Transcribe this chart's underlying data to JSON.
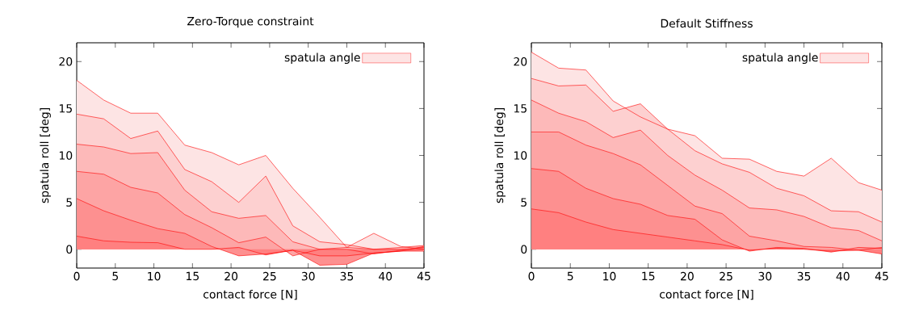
{
  "chart_data": [
    {
      "type": "area",
      "title": "Zero-Torque constraint",
      "xlabel": "contact force [N]",
      "ylabel": "spatula roll [deg]",
      "legend": "top right",
      "xlim": [
        0,
        45
      ],
      "ylim": [
        -2,
        22
      ],
      "xticks": [
        0,
        5,
        10,
        15,
        20,
        25,
        30,
        35,
        40,
        45
      ],
      "yticks": [
        0,
        5,
        10,
        15,
        20
      ],
      "x": [
        0,
        3.5,
        7,
        10.5,
        14,
        17.5,
        21,
        24.5,
        28,
        31.5,
        35,
        38.5,
        42,
        45
      ],
      "series": [
        {
          "name": "spatula angle",
          "color": "#fde4e4",
          "values": [
            18.0,
            15.9,
            14.5,
            14.5,
            11.1,
            10.3,
            9.0,
            10.0,
            6.5,
            3.4,
            0.2,
            1.7,
            0.3,
            0
          ]
        },
        {
          "color": "#fdd0d0",
          "values": [
            14.4,
            13.9,
            11.8,
            12.6,
            8.5,
            7.2,
            5.0,
            7.8,
            2.5,
            0.8,
            0.5,
            0,
            0,
            0.2
          ]
        },
        {
          "color": "#fdb9b9",
          "values": [
            11.2,
            10.9,
            10.2,
            10.3,
            6.3,
            4.0,
            3.3,
            3.6,
            0.8,
            0,
            0.2,
            0,
            0.2,
            0.4
          ]
        },
        {
          "color": "#fda4a4",
          "values": [
            8.3,
            8.0,
            6.6,
            6.0,
            3.7,
            2.3,
            0.7,
            1.3,
            -0.7,
            0,
            0,
            -0.5,
            -0.1,
            0
          ]
        },
        {
          "color": "#fd9090",
          "values": [
            5.4,
            4.1,
            3.1,
            2.2,
            1.7,
            0.3,
            -0.7,
            -0.5,
            -0.1,
            -1.7,
            -1.6,
            -0.4,
            -0.2,
            -0.2
          ]
        },
        {
          "color": "#ff8080",
          "values": [
            1.4,
            0.9,
            0.75,
            0.7,
            0,
            0,
            0.2,
            -0.6,
            -0.1,
            -0.7,
            -0.7,
            -0.4,
            -0.2,
            0.3
          ]
        }
      ]
    },
    {
      "type": "area",
      "title": "Default Stiffness",
      "xlabel": "contact force [N]",
      "ylabel": "spatula roll [deg]",
      "legend": "top right",
      "xlim": [
        0,
        45
      ],
      "ylim": [
        -2,
        22
      ],
      "xticks": [
        0,
        5,
        10,
        15,
        20,
        25,
        30,
        35,
        40,
        45
      ],
      "yticks": [
        0,
        5,
        10,
        15,
        20
      ],
      "x": [
        0,
        3.5,
        7,
        10.5,
        14,
        17.5,
        21,
        24.5,
        28,
        31.5,
        35,
        38.5,
        42,
        45
      ],
      "series": [
        {
          "name": "spatula angle",
          "color": "#fde4e4",
          "values": [
            21.0,
            19.3,
            19.1,
            15.8,
            14.1,
            12.8,
            12.1,
            9.7,
            9.6,
            8.3,
            7.8,
            9.7,
            7.1,
            6.3
          ]
        },
        {
          "color": "#fdd0d0",
          "values": [
            18.2,
            17.4,
            17.5,
            14.7,
            15.5,
            12.8,
            10.5,
            9.1,
            8.2,
            6.5,
            5.7,
            4.1,
            4.0,
            2.9
          ]
        },
        {
          "color": "#fdb9b9",
          "values": [
            15.9,
            14.5,
            13.6,
            11.9,
            12.7,
            10.0,
            7.9,
            6.3,
            4.4,
            4.2,
            3.5,
            2.3,
            2.0,
            0.9
          ]
        },
        {
          "color": "#fda4a4",
          "values": [
            12.5,
            12.5,
            11.1,
            10.2,
            9.0,
            6.8,
            4.6,
            3.8,
            1.4,
            0.9,
            0.3,
            0.2,
            -0.1,
            0.2
          ]
        },
        {
          "color": "#fd9090",
          "values": [
            8.6,
            8.3,
            6.5,
            5.4,
            4.8,
            3.6,
            3.2,
            1.0,
            -0.2,
            0.2,
            0.1,
            -0.3,
            0.2,
            0.1
          ]
        },
        {
          "color": "#ff8080",
          "values": [
            4.3,
            3.9,
            2.9,
            2.1,
            1.7,
            1.3,
            0.9,
            0.5,
            -0.1,
            0.1,
            0,
            -0.2,
            -0.1,
            -0.5
          ]
        }
      ]
    }
  ]
}
